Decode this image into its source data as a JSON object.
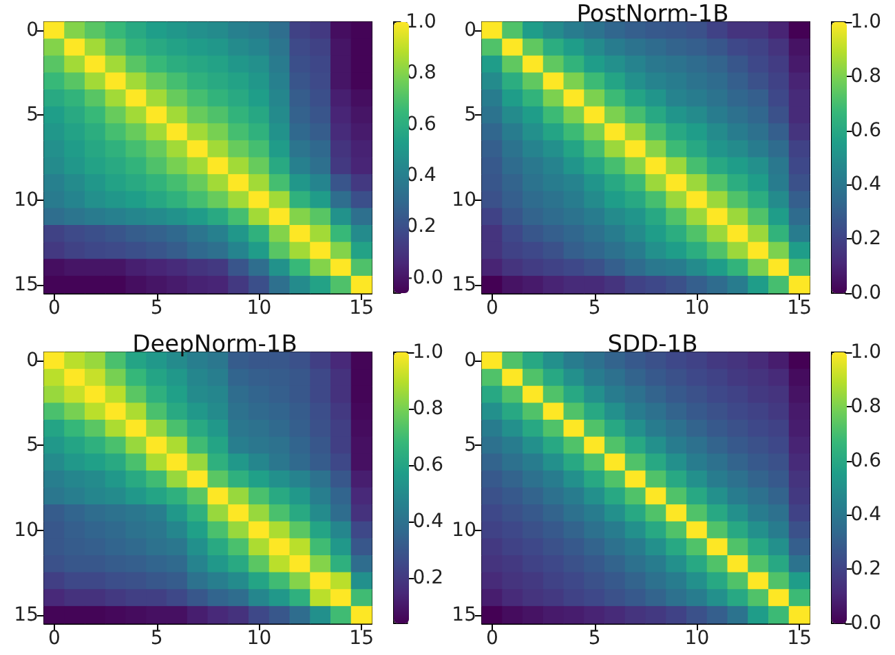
{
  "chart_data": [
    {
      "type": "heatmap",
      "categories": [
        "0",
        null,
        null,
        null,
        null,
        "5",
        null,
        null,
        null,
        null,
        "10",
        null,
        null,
        null,
        null,
        "15"
      ],
      "y_categories": [
        "0",
        null,
        null,
        null,
        null,
        "5",
        null,
        null,
        null,
        null,
        "10",
        null,
        null,
        null,
        null,
        "15"
      ],
      "clim": [
        -0.06,
        1.0
      ],
      "cticks": [
        {
          "value": 0,
          "label": "-0.0"
        },
        {
          "value": 0.2,
          "label": "0.2"
        },
        {
          "value": 0.4,
          "label": "0.4"
        },
        {
          "value": 0.6,
          "label": "0.6"
        },
        {
          "value": 0.8,
          "label": "0.8"
        },
        {
          "value": 1,
          "label": "1.0"
        }
      ],
      "cells": [
        [
          1,
          0.8,
          0.72,
          0.65,
          0.58,
          0.53,
          0.5,
          0.47,
          0.45,
          0.4,
          0.38,
          0.32,
          0.15,
          0.12,
          -0.02,
          -0.05
        ],
        [
          0.8,
          1,
          0.85,
          0.72,
          0.63,
          0.58,
          0.55,
          0.52,
          0.5,
          0.45,
          0.42,
          0.35,
          0.18,
          0.15,
          0,
          -0.05
        ],
        [
          0.72,
          0.85,
          1,
          0.85,
          0.72,
          0.65,
          0.6,
          0.57,
          0.55,
          0.5,
          0.47,
          0.38,
          0.2,
          0.17,
          0,
          -0.05
        ],
        [
          0.65,
          0.72,
          0.85,
          1,
          0.85,
          0.75,
          0.68,
          0.62,
          0.58,
          0.55,
          0.5,
          0.4,
          0.22,
          0.18,
          0,
          -0.05
        ],
        [
          0.58,
          0.63,
          0.72,
          0.85,
          1,
          0.85,
          0.75,
          0.68,
          0.63,
          0.58,
          0.53,
          0.43,
          0.25,
          0.2,
          0.03,
          -0.02
        ],
        [
          0.53,
          0.58,
          0.65,
          0.75,
          0.85,
          1,
          0.85,
          0.75,
          0.7,
          0.63,
          0.57,
          0.45,
          0.27,
          0.22,
          0.05,
          0
        ],
        [
          0.5,
          0.55,
          0.6,
          0.68,
          0.75,
          0.85,
          1,
          0.85,
          0.78,
          0.68,
          0.62,
          0.48,
          0.3,
          0.25,
          0.07,
          0.02
        ],
        [
          0.47,
          0.52,
          0.57,
          0.62,
          0.68,
          0.75,
          0.85,
          1,
          0.85,
          0.75,
          0.68,
          0.52,
          0.35,
          0.3,
          0.1,
          0.04
        ],
        [
          0.45,
          0.5,
          0.55,
          0.58,
          0.63,
          0.7,
          0.78,
          0.85,
          1,
          0.85,
          0.75,
          0.58,
          0.4,
          0.33,
          0.12,
          0.05
        ],
        [
          0.4,
          0.45,
          0.5,
          0.55,
          0.58,
          0.63,
          0.68,
          0.75,
          0.85,
          1,
          0.85,
          0.68,
          0.5,
          0.42,
          0.22,
          0.12
        ],
        [
          0.38,
          0.42,
          0.47,
          0.5,
          0.53,
          0.57,
          0.62,
          0.68,
          0.75,
          0.85,
          1,
          0.85,
          0.62,
          0.52,
          0.32,
          0.2
        ],
        [
          0.32,
          0.35,
          0.38,
          0.4,
          0.43,
          0.45,
          0.48,
          0.52,
          0.58,
          0.68,
          0.85,
          1,
          0.8,
          0.72,
          0.48,
          0.33
        ],
        [
          0.15,
          0.18,
          0.2,
          0.22,
          0.25,
          0.27,
          0.3,
          0.35,
          0.4,
          0.5,
          0.62,
          0.8,
          1,
          0.85,
          0.65,
          0.45
        ],
        [
          0.12,
          0.15,
          0.17,
          0.18,
          0.2,
          0.22,
          0.25,
          0.3,
          0.33,
          0.42,
          0.52,
          0.72,
          0.85,
          1,
          0.8,
          0.55
        ],
        [
          -0.02,
          0,
          0,
          0,
          0.03,
          0.05,
          0.07,
          0.1,
          0.12,
          0.22,
          0.32,
          0.48,
          0.65,
          0.8,
          1,
          0.7
        ],
        [
          -0.05,
          -0.05,
          -0.05,
          -0.05,
          -0.02,
          0,
          0.02,
          0.04,
          0.05,
          0.12,
          0.2,
          0.33,
          0.45,
          0.55,
          0.7,
          1
        ]
      ]
    },
    {
      "type": "heatmap",
      "title": "PostNorm-1B",
      "categories": [
        "0",
        null,
        null,
        null,
        null,
        "5",
        null,
        null,
        null,
        null,
        "10",
        null,
        null,
        null,
        null,
        "15"
      ],
      "y_categories": [
        "0",
        null,
        null,
        null,
        null,
        "5",
        null,
        null,
        null,
        null,
        "10",
        null,
        null,
        null,
        null,
        "15"
      ],
      "clim": [
        0,
        1.0
      ],
      "cticks": [
        {
          "value": 0,
          "label": "0.0"
        },
        {
          "value": 0.2,
          "label": "0.2"
        },
        {
          "value": 0.4,
          "label": "0.4"
        },
        {
          "value": 0.6,
          "label": "0.6"
        },
        {
          "value": 0.8,
          "label": "0.8"
        },
        {
          "value": 1,
          "label": "1.0"
        }
      ],
      "cells": [
        [
          1,
          0.72,
          0.55,
          0.48,
          0.42,
          0.38,
          0.33,
          0.3,
          0.28,
          0.27,
          0.25,
          0.2,
          0.15,
          0.15,
          0.1,
          0
        ],
        [
          0.72,
          1,
          0.75,
          0.62,
          0.55,
          0.48,
          0.42,
          0.38,
          0.35,
          0.32,
          0.3,
          0.27,
          0.22,
          0.2,
          0.15,
          0.05
        ],
        [
          0.55,
          0.75,
          1,
          0.75,
          0.65,
          0.55,
          0.5,
          0.45,
          0.4,
          0.38,
          0.35,
          0.32,
          0.27,
          0.22,
          0.18,
          0.07
        ],
        [
          0.48,
          0.62,
          0.75,
          1,
          0.8,
          0.68,
          0.58,
          0.5,
          0.45,
          0.42,
          0.38,
          0.35,
          0.3,
          0.25,
          0.2,
          0.1
        ],
        [
          0.42,
          0.55,
          0.65,
          0.8,
          1,
          0.8,
          0.68,
          0.58,
          0.52,
          0.45,
          0.42,
          0.38,
          0.33,
          0.3,
          0.22,
          0.12
        ],
        [
          0.38,
          0.48,
          0.55,
          0.68,
          0.8,
          1,
          0.8,
          0.7,
          0.6,
          0.52,
          0.48,
          0.42,
          0.37,
          0.33,
          0.25,
          0.12
        ],
        [
          0.33,
          0.42,
          0.5,
          0.58,
          0.68,
          0.8,
          1,
          0.85,
          0.7,
          0.6,
          0.55,
          0.48,
          0.42,
          0.37,
          0.3,
          0.15
        ],
        [
          0.3,
          0.38,
          0.45,
          0.5,
          0.58,
          0.7,
          0.85,
          1,
          0.82,
          0.68,
          0.6,
          0.52,
          0.48,
          0.42,
          0.35,
          0.2
        ],
        [
          0.28,
          0.35,
          0.4,
          0.45,
          0.52,
          0.6,
          0.7,
          0.82,
          1,
          0.85,
          0.7,
          0.6,
          0.55,
          0.5,
          0.4,
          0.22
        ],
        [
          0.27,
          0.32,
          0.38,
          0.42,
          0.45,
          0.52,
          0.6,
          0.68,
          0.85,
          1,
          0.85,
          0.72,
          0.62,
          0.55,
          0.42,
          0.25
        ],
        [
          0.25,
          0.3,
          0.35,
          0.38,
          0.42,
          0.48,
          0.55,
          0.6,
          0.7,
          0.85,
          1,
          0.85,
          0.72,
          0.62,
          0.48,
          0.3
        ],
        [
          0.2,
          0.27,
          0.32,
          0.35,
          0.38,
          0.42,
          0.48,
          0.52,
          0.6,
          0.72,
          0.85,
          1,
          0.85,
          0.72,
          0.55,
          0.35
        ],
        [
          0.15,
          0.22,
          0.27,
          0.3,
          0.33,
          0.37,
          0.42,
          0.48,
          0.55,
          0.62,
          0.72,
          0.85,
          1,
          0.85,
          0.65,
          0.42
        ],
        [
          0.15,
          0.2,
          0.22,
          0.25,
          0.3,
          0.33,
          0.37,
          0.42,
          0.5,
          0.55,
          0.62,
          0.72,
          0.85,
          1,
          0.8,
          0.55
        ],
        [
          0.1,
          0.15,
          0.18,
          0.2,
          0.22,
          0.25,
          0.3,
          0.35,
          0.4,
          0.42,
          0.48,
          0.55,
          0.65,
          0.8,
          1,
          0.7
        ],
        [
          0,
          0.05,
          0.07,
          0.1,
          0.12,
          0.12,
          0.15,
          0.2,
          0.22,
          0.25,
          0.3,
          0.35,
          0.42,
          0.55,
          0.7,
          1
        ]
      ]
    },
    {
      "type": "heatmap",
      "title": "DeepNorm-1B",
      "categories": [
        "0",
        null,
        null,
        null,
        null,
        "5",
        null,
        null,
        null,
        null,
        "10",
        null,
        null,
        null,
        null,
        "15"
      ],
      "y_categories": [
        "0",
        null,
        null,
        null,
        null,
        "5",
        null,
        null,
        null,
        null,
        "10",
        null,
        null,
        null,
        null,
        "15"
      ],
      "clim": [
        0.04,
        1.0
      ],
      "cticks": [
        {
          "value": 0.2,
          "label": "0.2"
        },
        {
          "value": 0.4,
          "label": "0.4"
        },
        {
          "value": 0.6,
          "label": "0.6"
        },
        {
          "value": 0.8,
          "label": "0.8"
        },
        {
          "value": 1,
          "label": "1.0"
        }
      ],
      "cells": [
        [
          1,
          0.9,
          0.85,
          0.72,
          0.6,
          0.55,
          0.5,
          0.45,
          0.42,
          0.32,
          0.3,
          0.3,
          0.28,
          0.22,
          0.15,
          0.05
        ],
        [
          0.9,
          1,
          0.92,
          0.8,
          0.68,
          0.6,
          0.55,
          0.48,
          0.45,
          0.35,
          0.33,
          0.32,
          0.3,
          0.25,
          0.18,
          0.05
        ],
        [
          0.85,
          0.92,
          1,
          0.9,
          0.75,
          0.65,
          0.58,
          0.5,
          0.48,
          0.38,
          0.35,
          0.33,
          0.3,
          0.25,
          0.18,
          0.05
        ],
        [
          0.72,
          0.8,
          0.9,
          1,
          0.88,
          0.72,
          0.62,
          0.55,
          0.5,
          0.4,
          0.37,
          0.35,
          0.32,
          0.27,
          0.2,
          0.06
        ],
        [
          0.6,
          0.68,
          0.75,
          0.88,
          1,
          0.85,
          0.72,
          0.62,
          0.55,
          0.42,
          0.4,
          0.37,
          0.33,
          0.28,
          0.22,
          0.07
        ],
        [
          0.55,
          0.6,
          0.65,
          0.72,
          0.85,
          1,
          0.88,
          0.7,
          0.6,
          0.45,
          0.42,
          0.4,
          0.35,
          0.3,
          0.22,
          0.08
        ],
        [
          0.5,
          0.55,
          0.58,
          0.62,
          0.72,
          0.88,
          1,
          0.85,
          0.65,
          0.55,
          0.48,
          0.42,
          0.37,
          0.32,
          0.25,
          0.08
        ],
        [
          0.45,
          0.48,
          0.5,
          0.55,
          0.62,
          0.7,
          0.85,
          1,
          0.75,
          0.65,
          0.58,
          0.52,
          0.47,
          0.4,
          0.3,
          0.12
        ],
        [
          0.42,
          0.45,
          0.48,
          0.5,
          0.55,
          0.6,
          0.65,
          0.75,
          1,
          0.85,
          0.72,
          0.62,
          0.55,
          0.45,
          0.35,
          0.15
        ],
        [
          0.32,
          0.35,
          0.38,
          0.4,
          0.42,
          0.45,
          0.55,
          0.65,
          0.85,
          1,
          0.85,
          0.72,
          0.62,
          0.5,
          0.38,
          0.18
        ],
        [
          0.3,
          0.33,
          0.35,
          0.37,
          0.4,
          0.42,
          0.48,
          0.58,
          0.72,
          0.85,
          1,
          0.88,
          0.75,
          0.6,
          0.48,
          0.25
        ],
        [
          0.3,
          0.32,
          0.33,
          0.35,
          0.37,
          0.4,
          0.42,
          0.52,
          0.62,
          0.72,
          0.88,
          1,
          0.9,
          0.7,
          0.55,
          0.3
        ],
        [
          0.28,
          0.3,
          0.3,
          0.32,
          0.33,
          0.35,
          0.37,
          0.47,
          0.55,
          0.62,
          0.75,
          0.9,
          1,
          0.82,
          0.65,
          0.38
        ],
        [
          0.22,
          0.25,
          0.25,
          0.27,
          0.28,
          0.3,
          0.32,
          0.4,
          0.45,
          0.5,
          0.6,
          0.7,
          0.82,
          1,
          0.9,
          0.52
        ],
        [
          0.15,
          0.18,
          0.18,
          0.2,
          0.22,
          0.22,
          0.25,
          0.3,
          0.35,
          0.38,
          0.48,
          0.55,
          0.65,
          0.9,
          1,
          0.7
        ],
        [
          0.05,
          0.05,
          0.05,
          0.06,
          0.07,
          0.08,
          0.08,
          0.12,
          0.15,
          0.18,
          0.25,
          0.3,
          0.38,
          0.52,
          0.7,
          1
        ]
      ]
    },
    {
      "type": "heatmap",
      "title": "SDD-1B",
      "categories": [
        "0",
        null,
        null,
        null,
        null,
        "5",
        null,
        null,
        null,
        null,
        "10",
        null,
        null,
        null,
        null,
        "15"
      ],
      "y_categories": [
        "0",
        null,
        null,
        null,
        null,
        "5",
        null,
        null,
        null,
        null,
        "10",
        null,
        null,
        null,
        null,
        "15"
      ],
      "clim": [
        0,
        1.0
      ],
      "cticks": [
        {
          "value": 0,
          "label": "0.0"
        },
        {
          "value": 0.2,
          "label": "0.2"
        },
        {
          "value": 0.4,
          "label": "0.4"
        },
        {
          "value": 0.6,
          "label": "0.6"
        },
        {
          "value": 0.8,
          "label": "0.8"
        },
        {
          "value": 1,
          "label": "1.0"
        }
      ],
      "cells": [
        [
          1,
          0.72,
          0.6,
          0.5,
          0.42,
          0.37,
          0.32,
          0.28,
          0.25,
          0.22,
          0.2,
          0.17,
          0.15,
          0.12,
          0.08,
          0
        ],
        [
          0.72,
          1,
          0.72,
          0.6,
          0.5,
          0.42,
          0.37,
          0.32,
          0.28,
          0.25,
          0.22,
          0.2,
          0.17,
          0.15,
          0.12,
          0.03
        ],
        [
          0.6,
          0.72,
          1,
          0.72,
          0.6,
          0.5,
          0.42,
          0.37,
          0.32,
          0.28,
          0.25,
          0.22,
          0.2,
          0.17,
          0.15,
          0.05
        ],
        [
          0.5,
          0.6,
          0.72,
          1,
          0.72,
          0.6,
          0.5,
          0.42,
          0.37,
          0.32,
          0.28,
          0.25,
          0.22,
          0.2,
          0.17,
          0.07
        ],
        [
          0.42,
          0.5,
          0.6,
          0.72,
          1,
          0.72,
          0.6,
          0.5,
          0.42,
          0.37,
          0.32,
          0.28,
          0.25,
          0.22,
          0.2,
          0.08
        ],
        [
          0.37,
          0.42,
          0.5,
          0.6,
          0.72,
          1,
          0.72,
          0.6,
          0.5,
          0.42,
          0.37,
          0.32,
          0.28,
          0.25,
          0.22,
          0.1
        ],
        [
          0.32,
          0.37,
          0.42,
          0.5,
          0.6,
          0.72,
          1,
          0.72,
          0.6,
          0.5,
          0.42,
          0.37,
          0.32,
          0.28,
          0.25,
          0.12
        ],
        [
          0.28,
          0.32,
          0.37,
          0.42,
          0.5,
          0.6,
          0.72,
          1,
          0.72,
          0.6,
          0.5,
          0.42,
          0.37,
          0.32,
          0.28,
          0.15
        ],
        [
          0.25,
          0.28,
          0.32,
          0.37,
          0.42,
          0.5,
          0.6,
          0.72,
          1,
          0.72,
          0.6,
          0.5,
          0.42,
          0.37,
          0.32,
          0.17
        ],
        [
          0.22,
          0.25,
          0.28,
          0.32,
          0.37,
          0.42,
          0.5,
          0.6,
          0.72,
          1,
          0.72,
          0.6,
          0.5,
          0.42,
          0.37,
          0.2
        ],
        [
          0.2,
          0.22,
          0.25,
          0.28,
          0.32,
          0.37,
          0.42,
          0.5,
          0.6,
          0.72,
          1,
          0.72,
          0.6,
          0.5,
          0.42,
          0.25
        ],
        [
          0.17,
          0.2,
          0.22,
          0.25,
          0.28,
          0.32,
          0.37,
          0.42,
          0.5,
          0.6,
          0.72,
          1,
          0.72,
          0.6,
          0.5,
          0.3
        ],
        [
          0.15,
          0.17,
          0.2,
          0.22,
          0.25,
          0.28,
          0.32,
          0.37,
          0.42,
          0.5,
          0.6,
          0.72,
          1,
          0.72,
          0.6,
          0.38
        ],
        [
          0.12,
          0.15,
          0.17,
          0.2,
          0.22,
          0.25,
          0.28,
          0.32,
          0.37,
          0.42,
          0.5,
          0.6,
          0.72,
          1,
          0.72,
          0.55
        ],
        [
          0.08,
          0.12,
          0.15,
          0.17,
          0.2,
          0.22,
          0.25,
          0.28,
          0.32,
          0.37,
          0.42,
          0.5,
          0.6,
          0.72,
          1,
          0.68
        ],
        [
          0,
          0.03,
          0.05,
          0.07,
          0.08,
          0.1,
          0.12,
          0.15,
          0.17,
          0.2,
          0.25,
          0.3,
          0.38,
          0.55,
          0.68,
          1
        ]
      ]
    }
  ]
}
